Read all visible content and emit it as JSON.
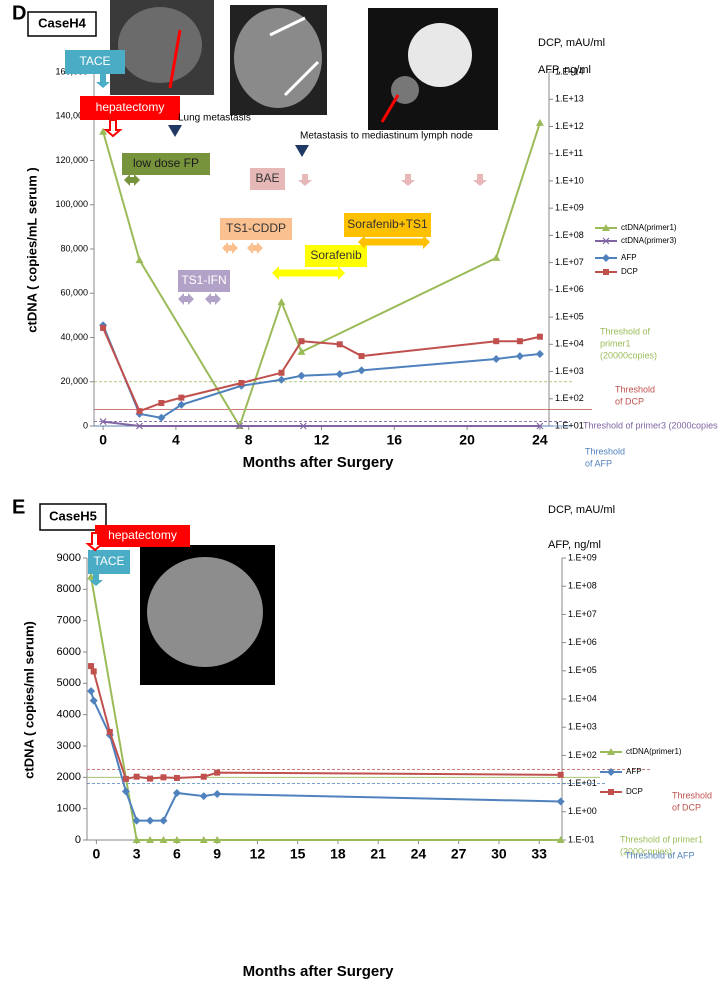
{
  "chart_data": [
    {
      "type": "line",
      "panel_label": "D",
      "case_label": "CaseH4",
      "ylabel": "ctDNA ( copies/mL serum )",
      "y2label": [
        "DCP, mAU/ml",
        "AFP, ng/ml"
      ],
      "xlabel": "Months after Surgery",
      "xlim": [
        -0.5,
        24.5
      ],
      "xticks": [
        0,
        4,
        8,
        12,
        16,
        20,
        24
      ],
      "ylim": [
        0,
        160000
      ],
      "yticks": [
        0,
        {
          "value": 20000,
          "label": "20,000"
        },
        {
          "value": 40000,
          "label": "40,000"
        },
        {
          "value": 60000,
          "label": "60,000"
        },
        {
          "value": 80000,
          "label": "80,000"
        },
        {
          "value": 100000,
          "label": "100,000"
        },
        {
          "value": 120000,
          "label": "120,000"
        },
        {
          "value": 140000,
          "label": "140,000"
        },
        {
          "value": 160000,
          "label": "160,000"
        }
      ],
      "y2lim": [
        10,
        100000000000000
      ],
      "y2scale": "log",
      "y2ticks": [
        {
          "value": 10,
          "label": "1.E+01"
        },
        {
          "value": 100,
          "label": "1.E+02"
        },
        {
          "value": 1000,
          "label": "1.E+03"
        },
        {
          "value": 10000,
          "label": "1.E+04"
        },
        {
          "value": 100000,
          "label": "1.E+05"
        },
        {
          "value": 1000000,
          "label": "1.E+06"
        },
        {
          "value": 10000000,
          "label": "1.E+07"
        },
        {
          "value": 100000000,
          "label": "1.E+08"
        },
        {
          "value": 1000000000,
          "label": "1.E+09"
        },
        {
          "value": 10000000000,
          "label": "1.E+10"
        },
        {
          "value": 100000000000,
          "label": "1.E+11"
        },
        {
          "value": 1000000000000,
          "label": "1.E+12"
        },
        {
          "value": 10000000000000,
          "label": "1.E+13"
        },
        {
          "value": 100000000000000,
          "label": "1.E+14"
        }
      ],
      "series": [
        {
          "name": "ctDNA(primer1)",
          "color": "#9bbb59",
          "marker": "triangle",
          "axis": "y",
          "x": [
            0,
            2,
            7.5,
            9.8,
            10.9,
            21.6,
            24
          ],
          "values": [
            133000,
            75000,
            0,
            56000,
            33500,
            76000,
            137000
          ]
        },
        {
          "name": "ctDNA(primer3)",
          "color": "#8064a2",
          "marker": "x",
          "axis": "y",
          "x": [
            0,
            2,
            7.5,
            11,
            24
          ],
          "values": [
            2000,
            0,
            0,
            0,
            0
          ]
        },
        {
          "name": "AFP",
          "color": "#4f81bd",
          "marker": "diamond",
          "axis": "y2",
          "x": [
            0,
            2,
            3.2,
            4.3,
            7.6,
            9.8,
            10.9,
            13,
            14.2,
            21.6,
            22.9,
            24
          ],
          "values": [
            50000,
            28,
            20,
            60,
            300,
            500,
            700,
            800,
            1100,
            2900,
            3700,
            4400
          ]
        },
        {
          "name": "DCP",
          "color": "#c0504d",
          "marker": "square",
          "axis": "y2",
          "x": [
            0,
            2,
            3.2,
            4.3,
            7.6,
            9.8,
            10.9,
            13,
            14.2,
            21.6,
            22.9,
            24
          ],
          "values": [
            40000,
            35,
            70,
            110,
            380,
            900,
            13000,
            10000,
            3700,
            13000,
            13000,
            19000
          ]
        }
      ],
      "thresholds": [
        {
          "label": [
            "Threshold of",
            "primer1",
            "(20000copies)"
          ],
          "value": 20000,
          "axis": "y",
          "color": "#9bbb59"
        },
        {
          "label": [
            "Threshold",
            "of DCP"
          ],
          "value": 40,
          "axis": "y2",
          "color": "#c0504d"
        },
        {
          "label": [
            "Threshold of primer3 (2000copies)"
          ],
          "value": 2000,
          "axis": "y",
          "color": "#8064a2"
        },
        {
          "label": [
            "Threshold",
            "of AFP"
          ],
          "value": 10,
          "axis": "y2",
          "color": "#4f81bd"
        }
      ],
      "annotations": [
        {
          "text": "TACE",
          "color": "#4bacc6"
        },
        {
          "text": "hepatectomy",
          "color": "#ff0000"
        },
        {
          "text": "Lung metastasis"
        },
        {
          "text": "low dose FP",
          "color": "#77933c"
        },
        {
          "text": "BAE",
          "color": "#e6b9b8"
        },
        {
          "text": "Metastasis to mediastinum lymph node"
        },
        {
          "text": "TS1-CDDP",
          "color": "#fac090"
        },
        {
          "text": "Sorafenib",
          "color": "#ffff00"
        },
        {
          "text": "TS1-IFN",
          "color": "#b3a2c7"
        },
        {
          "text": "Sorafenib+TS1",
          "color": "#ffc000"
        }
      ]
    },
    {
      "type": "line",
      "panel_label": "E",
      "case_label": "CaseH5",
      "ylabel": "ctDNA ( copies/ml  serum)",
      "y2label": [
        "DCP, mAU/ml",
        "AFP, ng/ml"
      ],
      "xlabel": "Months after Surgery",
      "xlim": [
        -0.7,
        34.7
      ],
      "xticks": [
        0,
        3,
        6,
        9,
        12,
        15,
        18,
        21,
        24,
        27,
        30,
        33
      ],
      "ylim": [
        0,
        9000
      ],
      "yticks": [
        0,
        1000,
        2000,
        3000,
        4000,
        5000,
        6000,
        7000,
        8000,
        9000
      ],
      "y2lim": [
        0.1,
        1000000000
      ],
      "y2scale": "log",
      "y2ticks": [
        {
          "value": 0.1,
          "label": "1.E-01"
        },
        {
          "value": 1,
          "label": "1.E+00"
        },
        {
          "value": 10,
          "label": "1.E+01"
        },
        {
          "value": 100,
          "label": "1.E+02"
        },
        {
          "value": 1000,
          "label": "1.E+03"
        },
        {
          "value": 10000,
          "label": "1.E+04"
        },
        {
          "value": 100000,
          "label": "1.E+05"
        },
        {
          "value": 1000000,
          "label": "1.E+06"
        },
        {
          "value": 10000000,
          "label": "1.E+07"
        },
        {
          "value": 100000000,
          "label": "1.E+08"
        },
        {
          "value": 1000000000,
          "label": "1.E+09"
        }
      ],
      "series": [
        {
          "name": "ctDNA(primer1)",
          "color": "#9bbb59",
          "marker": "triangle",
          "axis": "y",
          "x": [
            -0.4,
            3,
            4,
            5,
            6,
            8,
            9,
            34.6
          ],
          "values": [
            8400,
            0,
            0,
            0,
            0,
            0,
            0,
            0
          ]
        },
        {
          "name": "AFP",
          "color": "#4f81bd",
          "marker": "diamond",
          "axis": "y",
          "x": [
            -0.4,
            -0.2,
            1,
            2.2,
            3,
            4,
            5,
            6,
            8,
            9,
            34.6
          ],
          "values": [
            4750,
            4450,
            3350,
            1550,
            620,
            620,
            620,
            1500,
            1400,
            1470,
            1230
          ]
        },
        {
          "name": "DCP",
          "color": "#c0504d",
          "marker": "square",
          "axis": "y",
          "x": [
            -0.4,
            -0.2,
            1,
            2.2,
            3,
            4,
            5,
            6,
            8,
            9,
            34.6
          ],
          "values": [
            5550,
            5380,
            3450,
            1950,
            2020,
            1960,
            2000,
            1980,
            2020,
            2150,
            2080
          ]
        }
      ],
      "thresholds": [
        {
          "label": [
            "Threshold",
            "of DCP"
          ],
          "value": 2250,
          "axis": "y",
          "color": "#c0504d"
        },
        {
          "label": [
            "Threshold of primer1",
            "(2000copies)"
          ],
          "value": 2000,
          "axis": "y",
          "color": "#9bbb59"
        },
        {
          "label": [
            "Threshold of AFP"
          ],
          "value": 1800,
          "axis": "y",
          "color": "#4f81bd"
        }
      ],
      "annotations": [
        {
          "text": "hepatectomy",
          "color": "#ff0000"
        },
        {
          "text": "TACE",
          "color": "#4bacc6"
        }
      ]
    }
  ]
}
